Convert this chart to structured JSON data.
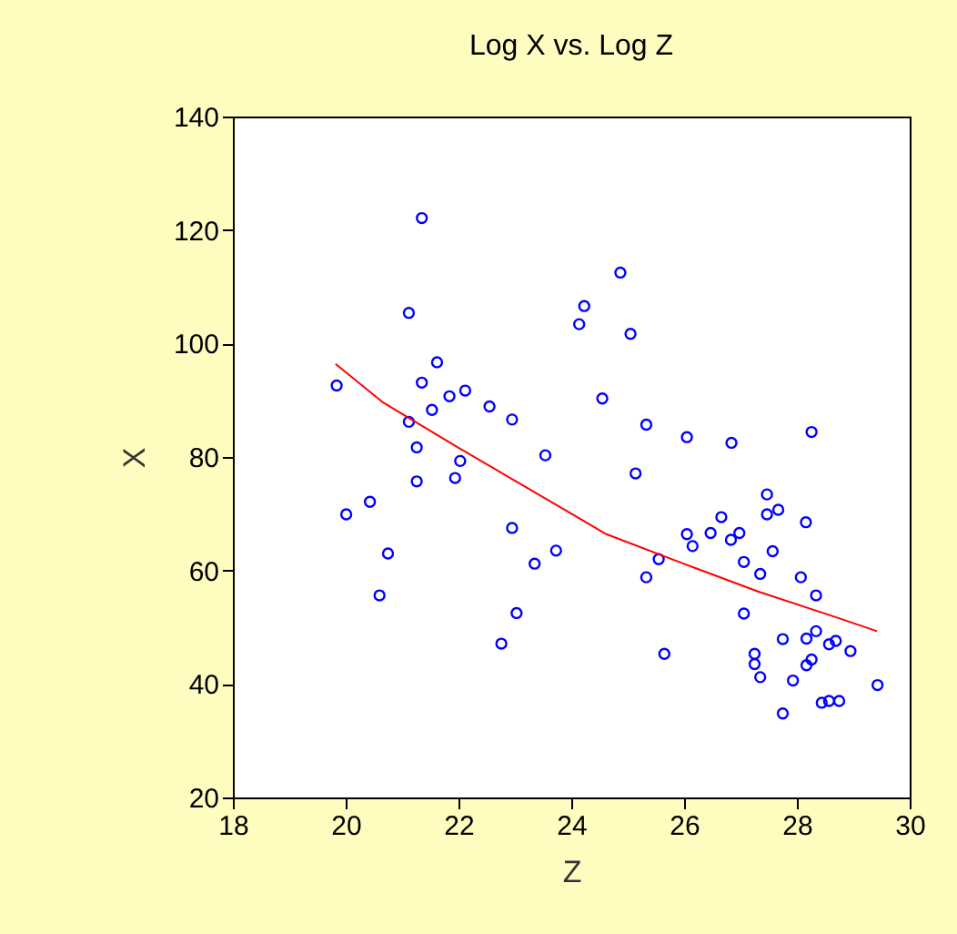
{
  "chart_data": {
    "type": "scatter",
    "title": "Log X vs. Log Z",
    "xlabel": "Z",
    "ylabel": "X",
    "xlim": [
      18,
      30
    ],
    "xticks": [
      18,
      20,
      22,
      24,
      26,
      28,
      30
    ],
    "ylim": [
      20,
      140
    ],
    "yticks": [
      20,
      40,
      60,
      80,
      100,
      120,
      140
    ],
    "grid": false,
    "marker": "circle",
    "series": [
      {
        "color": "#0000ff",
        "x": [
          21.35,
          21.12,
          21.62,
          21.35,
          19.84,
          21.84,
          22.12,
          21.53,
          22.55,
          22.95,
          21.12,
          21.26,
          23.54,
          22.03,
          21.26,
          21.94,
          20.43,
          20.01,
          22.95,
          23.73,
          20.75,
          23.35,
          20.6,
          23.03,
          22.76,
          24.87,
          24.23,
          24.14,
          25.05,
          24.55,
          26.05,
          26.84,
          28.26,
          25.14,
          25.33,
          27.47,
          27.47,
          27.67,
          26.66,
          26.05,
          26.15,
          26.47,
          26.83,
          26.98,
          28.16,
          27.57,
          27.06,
          27.35,
          28.07,
          28.34,
          25.55,
          25.33,
          27.06,
          25.65,
          27.75,
          28.17,
          28.34,
          28.57,
          28.69,
          28.95,
          27.25,
          27.25,
          27.35,
          27.93,
          28.17,
          28.26,
          29.43,
          27.75,
          28.44,
          28.57,
          28.75
        ],
        "values": [
          122.1,
          105.4,
          96.7,
          93.1,
          92.6,
          90.7,
          91.7,
          88.3,
          88.9,
          86.6,
          86.2,
          81.7,
          80.3,
          79.3,
          75.7,
          76.3,
          72.1,
          69.9,
          67.5,
          63.5,
          63.0,
          61.2,
          55.6,
          52.5,
          47.1,
          112.5,
          106.6,
          103.4,
          101.7,
          90.3,
          83.5,
          82.5,
          84.4,
          77.1,
          85.7,
          73.4,
          69.9,
          70.7,
          69.4,
          66.4,
          64.3,
          66.6,
          65.4,
          66.6,
          68.5,
          63.4,
          61.5,
          59.4,
          58.8,
          55.6,
          62.0,
          58.8,
          52.4,
          45.3,
          47.9,
          48.0,
          49.3,
          47.0,
          47.6,
          45.8,
          45.3,
          43.5,
          41.2,
          40.6,
          43.3,
          44.3,
          39.8,
          34.8,
          36.7,
          37.0,
          37.0
        ]
      },
      {
        "type": "line",
        "color": "#ff0000",
        "marker": "none",
        "line_style": "solid",
        "x": [
          19.82,
          20.65,
          22.04,
          24.19,
          24.62,
          26.02,
          27.31,
          28.71,
          29.42
        ],
        "values": [
          96.4,
          89.7,
          81.4,
          68.9,
          66.4,
          61.1,
          56.3,
          51.7,
          49.3
        ]
      }
    ]
  }
}
